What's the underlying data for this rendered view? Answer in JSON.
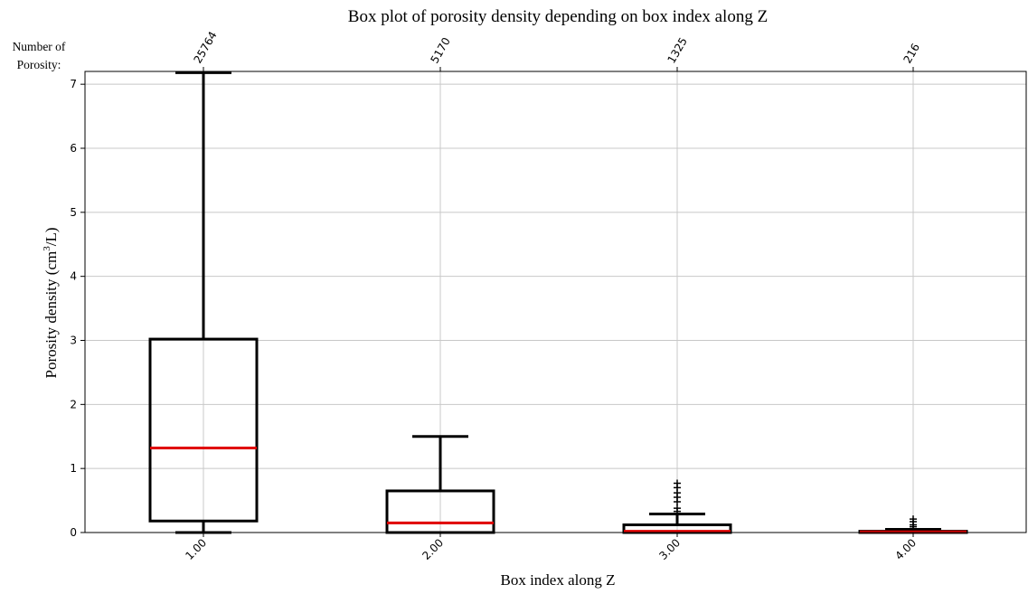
{
  "chart_data": {
    "type": "box",
    "title": "Box plot of porosity density depending on box index along Z",
    "xlabel": "Box index along Z",
    "ylabel_main": "Porosity density (cm",
    "ylabel_sup": "3",
    "ylabel_tail": "/L)",
    "ylim": [
      0,
      7.2
    ],
    "yticks": [
      "0",
      "1",
      "2",
      "3",
      "4",
      "5",
      "6",
      "7"
    ],
    "grid": true,
    "count_heading_line1": "Number of",
    "count_heading_line2": "Porosity:",
    "categories": [
      "1.00",
      "2.00",
      "3.00",
      "4.00"
    ],
    "counts": [
      "25764",
      "5170",
      "1325",
      "216"
    ],
    "boxes": [
      {
        "whisker_low": 0.0,
        "q1": 0.18,
        "median": 1.32,
        "q3": 3.02,
        "whisker_high": 7.18,
        "fliers": []
      },
      {
        "whisker_low": 0.0,
        "q1": 0.0,
        "median": 0.15,
        "q3": 0.65,
        "whisker_high": 1.5,
        "fliers": []
      },
      {
        "whisker_low": 0.0,
        "q1": 0.0,
        "median": 0.02,
        "q3": 0.12,
        "whisker_high": 0.29,
        "fliers": [
          0.33,
          0.38,
          0.48,
          0.55,
          0.62,
          0.7,
          0.77
        ]
      },
      {
        "whisker_low": 0.0,
        "q1": 0.0,
        "median": 0.01,
        "q3": 0.02,
        "whisker_high": 0.05,
        "fliers": [
          0.09,
          0.12,
          0.17,
          0.21
        ]
      }
    ],
    "colors": {
      "box": "#000000",
      "median": "#e00000",
      "grid": "#c8c8c8"
    }
  }
}
